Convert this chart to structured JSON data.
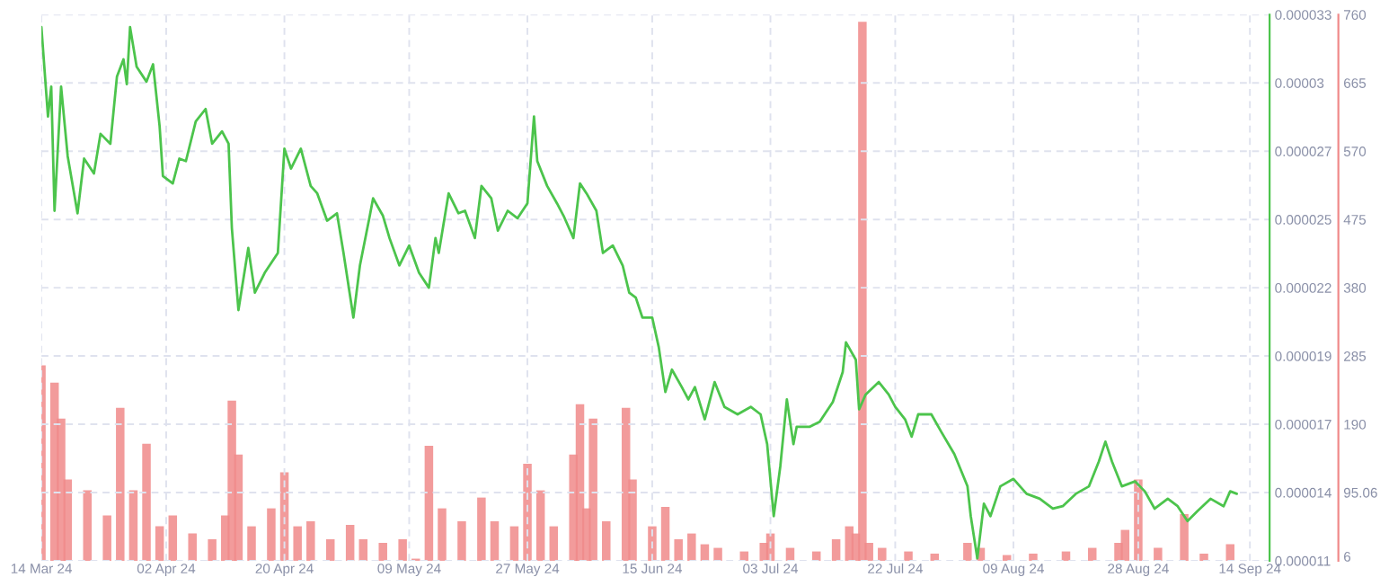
{
  "chart_data": {
    "type": "line",
    "xlim": [
      "2024-03-14",
      "2024-09-17"
    ],
    "xticks": [
      {
        "value": "2024-03-14",
        "label": "14 Mar 24"
      },
      {
        "value": "2024-04-02",
        "label": "02 Apr 24"
      },
      {
        "value": "2024-04-20",
        "label": "20 Apr 24"
      },
      {
        "value": "2024-05-09",
        "label": "09 May 24"
      },
      {
        "value": "2024-05-27",
        "label": "27 May 24"
      },
      {
        "value": "2024-06-15",
        "label": "15 Jun 24"
      },
      {
        "value": "2024-07-03",
        "label": "03 Jul 24"
      },
      {
        "value": "2024-07-22",
        "label": "22 Jul 24"
      },
      {
        "value": "2024-08-09",
        "label": "09 Aug 24"
      },
      {
        "value": "2024-08-28",
        "label": "28 Aug 24"
      },
      {
        "value": "2024-09-14",
        "label": "14 Sep 24"
      }
    ],
    "ylim": [
      1.1e-05,
      3.3e-05
    ],
    "yticks": [
      {
        "value": 1.1e-05,
        "label": "0.000011"
      },
      {
        "value": 1.375e-05,
        "label": "0.000014"
      },
      {
        "value": 1.65e-05,
        "label": "0.000017"
      },
      {
        "value": 1.925e-05,
        "label": "0.000019"
      },
      {
        "value": 2.2e-05,
        "label": "0.000022"
      },
      {
        "value": 2.475e-05,
        "label": "0.000025"
      },
      {
        "value": 2.75e-05,
        "label": "0.000027"
      },
      {
        "value": 3.025e-05,
        "label": "0.00003"
      },
      {
        "value": 3.3e-05,
        "label": "0.000033"
      }
    ],
    "y2lim": [
      0,
      760
    ],
    "y2ticks": [
      6,
      95.06,
      190,
      285,
      380,
      475,
      570,
      665,
      760
    ],
    "grid": true,
    "series": [
      {
        "type": "bar",
        "axis": "y2",
        "color": "#f08a8a",
        "x": [
          "2024-03-14",
          "2024-03-16",
          "2024-03-17",
          "2024-03-18",
          "2024-03-21",
          "2024-03-24",
          "2024-03-26",
          "2024-03-28",
          "2024-03-30",
          "2024-04-01",
          "2024-04-03",
          "2024-04-06",
          "2024-04-09",
          "2024-04-11",
          "2024-04-12",
          "2024-04-13",
          "2024-04-15",
          "2024-04-18",
          "2024-04-20",
          "2024-04-22",
          "2024-04-24",
          "2024-04-27",
          "2024-04-30",
          "2024-05-02",
          "2024-05-05",
          "2024-05-08",
          "2024-05-10",
          "2024-05-12",
          "2024-05-14",
          "2024-05-17",
          "2024-05-20",
          "2024-05-22",
          "2024-05-25",
          "2024-05-27",
          "2024-05-29",
          "2024-05-31",
          "2024-06-03",
          "2024-06-04",
          "2024-06-05",
          "2024-06-06",
          "2024-06-08",
          "2024-06-11",
          "2024-06-12",
          "2024-06-15",
          "2024-06-17",
          "2024-06-19",
          "2024-06-21",
          "2024-06-23",
          "2024-06-25",
          "2024-06-29",
          "2024-07-02",
          "2024-07-03",
          "2024-07-06",
          "2024-07-10",
          "2024-07-13",
          "2024-07-15",
          "2024-07-16",
          "2024-07-17",
          "2024-07-18",
          "2024-07-20",
          "2024-07-24",
          "2024-07-28",
          "2024-08-02",
          "2024-08-04",
          "2024-08-08",
          "2024-08-12",
          "2024-08-17",
          "2024-08-21",
          "2024-08-25",
          "2024-08-26",
          "2024-08-28",
          "2024-08-31",
          "2024-09-04",
          "2024-09-07",
          "2024-09-11"
        ],
        "values": [
          272,
          248,
          198,
          113,
          98,
          63,
          213,
          98,
          163,
          48,
          63,
          38,
          30,
          63,
          223,
          148,
          48,
          73,
          123,
          48,
          55,
          30,
          50,
          30,
          25,
          30,
          3,
          160,
          73,
          55,
          88,
          55,
          48,
          135,
          98,
          48,
          148,
          218,
          73,
          198,
          55,
          213,
          113,
          48,
          75,
          30,
          38,
          23,
          18,
          13,
          25,
          38,
          18,
          13,
          30,
          48,
          38,
          750,
          25,
          18,
          13,
          10,
          25,
          18,
          8,
          10,
          13,
          18,
          25,
          43,
          113,
          18,
          65,
          10,
          23
        ]
      },
      {
        "color": "#4cc44c",
        "x": [
          "2024-03-14",
          "2024-03-15",
          "2024-03-15T12:00",
          "2024-03-16",
          "2024-03-17",
          "2024-03-18",
          "2024-03-19T12:00",
          "2024-03-20T12:00",
          "2024-03-22",
          "2024-03-23",
          "2024-03-24T12:00",
          "2024-03-25T12:00",
          "2024-03-26T12:00",
          "2024-03-27",
          "2024-03-27T12:00",
          "2024-03-28T12:00",
          "2024-03-30",
          "2024-03-31",
          "2024-04-01",
          "2024-04-01T12:00",
          "2024-04-03",
          "2024-04-04",
          "2024-04-05",
          "2024-04-06T12:00",
          "2024-04-08",
          "2024-04-09",
          "2024-04-10T12:00",
          "2024-04-11T12:00",
          "2024-04-12",
          "2024-04-13",
          "2024-04-14T12:00",
          "2024-04-15T12:00",
          "2024-04-17",
          "2024-04-18T12:00",
          "2024-04-19",
          "2024-04-20",
          "2024-04-21",
          "2024-04-22T12:00",
          "2024-04-24",
          "2024-04-25",
          "2024-04-26T12:00",
          "2024-04-28",
          "2024-04-29",
          "2024-04-30T12:00",
          "2024-05-01T12:00",
          "2024-05-03",
          "2024-05-03T12:00",
          "2024-05-05",
          "2024-05-06",
          "2024-05-07T12:00",
          "2024-05-09",
          "2024-05-10T12:00",
          "2024-05-12",
          "2024-05-13",
          "2024-05-13T12:00",
          "2024-05-15",
          "2024-05-16T12:00",
          "2024-05-17T12:00",
          "2024-05-19",
          "2024-05-20",
          "2024-05-21T12:00",
          "2024-05-22T12:00",
          "2024-05-24",
          "2024-05-25T12:00",
          "2024-05-27",
          "2024-05-28",
          "2024-05-28T12:00",
          "2024-05-30",
          "2024-05-31T12:00",
          "2024-06-01T12:00",
          "2024-06-03",
          "2024-06-04",
          "2024-06-05",
          "2024-06-06T12:00",
          "2024-06-07T12:00",
          "2024-06-09",
          "2024-06-10T12:00",
          "2024-06-11T12:00",
          "2024-06-12T12:00",
          "2024-06-13T12:00",
          "2024-06-15",
          "2024-06-16",
          "2024-06-17",
          "2024-06-18",
          "2024-06-19T12:00",
          "2024-06-20T12:00",
          "2024-06-21T12:00",
          "2024-06-23",
          "2024-06-24T12:00",
          "2024-06-26",
          "2024-06-28",
          "2024-06-30",
          "2024-07-01T12:00",
          "2024-07-02T12:00",
          "2024-07-03T12:00",
          "2024-07-04T12:00",
          "2024-07-05T12:00",
          "2024-07-06T12:00",
          "2024-07-07",
          "2024-07-09",
          "2024-07-10T12:00",
          "2024-07-12T12:00",
          "2024-07-14",
          "2024-07-14T12:00",
          "2024-07-16",
          "2024-07-16T12:00",
          "2024-07-17T12:00",
          "2024-07-19T12:00",
          "2024-07-21",
          "2024-07-22",
          "2024-07-23T12:00",
          "2024-07-24T12:00",
          "2024-07-25T12:00",
          "2024-07-27T12:00",
          "2024-07-29",
          "2024-07-31",
          "2024-08-02",
          "2024-08-02T12:00",
          "2024-08-03T12:00",
          "2024-08-04T12:00",
          "2024-08-05T12:00",
          "2024-08-07",
          "2024-08-09",
          "2024-08-11",
          "2024-08-13",
          "2024-08-15",
          "2024-08-16T12:00",
          "2024-08-18T12:00",
          "2024-08-20T12:00",
          "2024-08-22",
          "2024-08-23",
          "2024-08-24",
          "2024-08-25T12:00",
          "2024-08-27T12:00",
          "2024-08-29",
          "2024-08-30T12:00",
          "2024-09-01T12:00",
          "2024-09-03",
          "2024-09-04T12:00",
          "2024-09-06",
          "2024-09-08",
          "2024-09-10",
          "2024-09-11",
          "2024-09-12"
        ],
        "values": [
          3.25e-05,
          2.89e-05,
          3.01e-05,
          2.51e-05,
          3.01e-05,
          2.73e-05,
          2.5e-05,
          2.72e-05,
          2.66e-05,
          2.82e-05,
          2.78e-05,
          3.05e-05,
          3.12e-05,
          3.02e-05,
          3.25e-05,
          3.09e-05,
          3.03e-05,
          3.1e-05,
          2.85e-05,
          2.65e-05,
          2.62e-05,
          2.72e-05,
          2.71e-05,
          2.87e-05,
          2.92e-05,
          2.78e-05,
          2.83e-05,
          2.78e-05,
          2.44e-05,
          2.11e-05,
          2.36e-05,
          2.18e-05,
          2.26e-05,
          2.32e-05,
          2.34e-05,
          2.76e-05,
          2.68e-05,
          2.76e-05,
          2.61e-05,
          2.58e-05,
          2.47e-05,
          2.5e-05,
          2.34e-05,
          2.08e-05,
          2.29e-05,
          2.49e-05,
          2.56e-05,
          2.49e-05,
          2.4e-05,
          2.29e-05,
          2.37e-05,
          2.26e-05,
          2.2e-05,
          2.4e-05,
          2.34e-05,
          2.58e-05,
          2.5e-05,
          2.51e-05,
          2.4e-05,
          2.61e-05,
          2.56e-05,
          2.43e-05,
          2.51e-05,
          2.48e-05,
          2.54e-05,
          2.89e-05,
          2.71e-05,
          2.61e-05,
          2.54e-05,
          2.49e-05,
          2.4e-05,
          2.62e-05,
          2.58e-05,
          2.51e-05,
          2.34e-05,
          2.37e-05,
          2.29e-05,
          2.18e-05,
          2.16e-05,
          2.08e-05,
          2.08e-05,
          1.96e-05,
          1.78e-05,
          1.87e-05,
          1.8e-05,
          1.75e-05,
          1.8e-05,
          1.67e-05,
          1.82e-05,
          1.72e-05,
          1.69e-05,
          1.72e-05,
          1.69e-05,
          1.57e-05,
          1.28e-05,
          1.48e-05,
          1.75e-05,
          1.57e-05,
          1.64e-05,
          1.64e-05,
          1.66e-05,
          1.74e-05,
          1.86e-05,
          1.98e-05,
          1.91e-05,
          1.71e-05,
          1.77e-05,
          1.82e-05,
          1.77e-05,
          1.72e-05,
          1.67e-05,
          1.6e-05,
          1.69e-05,
          1.69e-05,
          1.62e-05,
          1.53e-05,
          1.4e-05,
          1.28e-05,
          1.11e-05,
          1.33e-05,
          1.28e-05,
          1.4e-05,
          1.43e-05,
          1.37e-05,
          1.35e-05,
          1.31e-05,
          1.32e-05,
          1.37e-05,
          1.4e-05,
          1.5e-05,
          1.58e-05,
          1.5e-05,
          1.4e-05,
          1.42e-05,
          1.38e-05,
          1.31e-05,
          1.35e-05,
          1.32e-05,
          1.26e-05,
          1.3e-05,
          1.35e-05,
          1.32e-05,
          1.38e-05,
          1.37e-05
        ]
      }
    ]
  }
}
